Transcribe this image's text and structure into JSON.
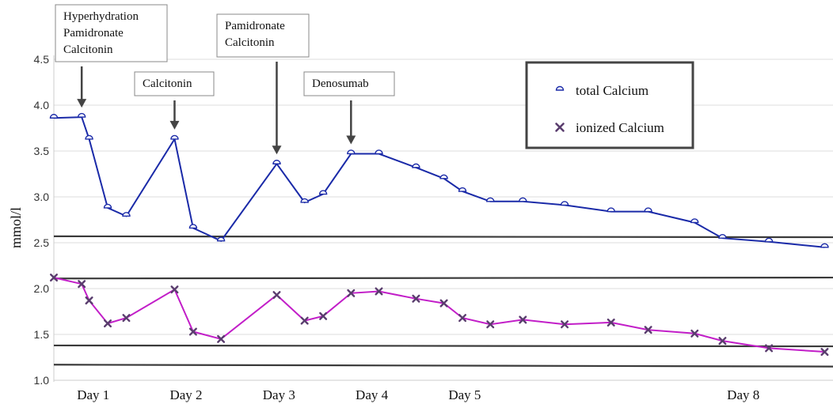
{
  "chart_data": {
    "type": "line",
    "ylabel": "mmol/l",
    "xlabel": "",
    "ylim": [
      1.0,
      4.5
    ],
    "yticks": [
      "1.0",
      "1.5",
      "2.0",
      "2.5",
      "3.0",
      "3.5",
      "4.0",
      "4.5"
    ],
    "grid": "horizontal",
    "x_tick_labels": [
      {
        "label": "Day 1",
        "x": 1.0
      },
      {
        "label": "Day 2",
        "x": 2.0
      },
      {
        "label": "Day 3",
        "x": 3.0
      },
      {
        "label": "Day 4",
        "x": 4.0
      },
      {
        "label": "Day 5",
        "x": 5.0
      },
      {
        "label": "Day 8",
        "x": 8.0
      }
    ],
    "series": [
      {
        "name": "total Calcium",
        "color": "#1a2aa8",
        "marker": "half-circle",
        "points": [
          [
            0.61,
            3.86
          ],
          [
            0.91,
            3.87
          ],
          [
            0.99,
            3.63
          ],
          [
            1.19,
            2.88
          ],
          [
            1.39,
            2.79
          ],
          [
            1.91,
            3.63
          ],
          [
            2.11,
            2.66
          ],
          [
            2.41,
            2.52
          ],
          [
            3.01,
            3.36
          ],
          [
            3.31,
            2.94
          ],
          [
            3.51,
            3.03
          ],
          [
            3.81,
            3.47
          ],
          [
            4.11,
            3.47
          ],
          [
            4.51,
            3.32
          ],
          [
            4.81,
            3.2
          ],
          [
            5.01,
            3.06
          ],
          [
            5.31,
            2.95
          ],
          [
            5.66,
            2.95
          ],
          [
            6.11,
            2.91
          ],
          [
            6.61,
            2.84
          ],
          [
            7.01,
            2.84
          ],
          [
            7.51,
            2.72
          ],
          [
            7.81,
            2.55
          ],
          [
            8.31,
            2.51
          ],
          [
            8.91,
            2.45
          ]
        ]
      },
      {
        "name": "ionized Calcium",
        "color": "#c21ec8",
        "marker": "x",
        "points": [
          [
            0.61,
            2.12
          ],
          [
            0.91,
            2.05
          ],
          [
            0.99,
            1.87
          ],
          [
            1.19,
            1.62
          ],
          [
            1.39,
            1.68
          ],
          [
            1.91,
            1.99
          ],
          [
            2.11,
            1.53
          ],
          [
            2.41,
            1.45
          ],
          [
            3.01,
            1.93
          ],
          [
            3.31,
            1.65
          ],
          [
            3.51,
            1.7
          ],
          [
            3.81,
            1.95
          ],
          [
            4.11,
            1.97
          ],
          [
            4.51,
            1.89
          ],
          [
            4.81,
            1.84
          ],
          [
            5.01,
            1.68
          ],
          [
            5.31,
            1.61
          ],
          [
            5.66,
            1.66
          ],
          [
            6.11,
            1.61
          ],
          [
            6.61,
            1.63
          ],
          [
            7.01,
            1.55
          ],
          [
            7.51,
            1.51
          ],
          [
            7.81,
            1.43
          ],
          [
            8.31,
            1.35
          ],
          [
            8.91,
            1.31
          ]
        ]
      }
    ],
    "reference_lines": [
      {
        "y_start": 2.57,
        "y_end": 2.56
      },
      {
        "y_start": 2.11,
        "y_end": 2.12
      },
      {
        "y_start": 1.38,
        "y_end": 1.37
      },
      {
        "y_start": 1.17,
        "y_end": 1.15
      }
    ],
    "annotations": [
      {
        "lines": [
          "Hyperhydration",
          "Pamidronate",
          "Calcitonin"
        ],
        "arrow_x": 0.91,
        "arrow_y": 3.87
      },
      {
        "lines": [
          "Calcitonin"
        ],
        "arrow_x": 1.91,
        "arrow_y": 3.63
      },
      {
        "lines": [
          "Pamidronate",
          "Calcitonin"
        ],
        "arrow_x": 3.01,
        "arrow_y": 3.36
      },
      {
        "lines": [
          "Denosumab"
        ],
        "arrow_x": 3.81,
        "arrow_y": 3.47
      }
    ],
    "legend": {
      "position": "top-right",
      "entries": [
        "total Calcium",
        "ionized Calcium"
      ]
    }
  }
}
